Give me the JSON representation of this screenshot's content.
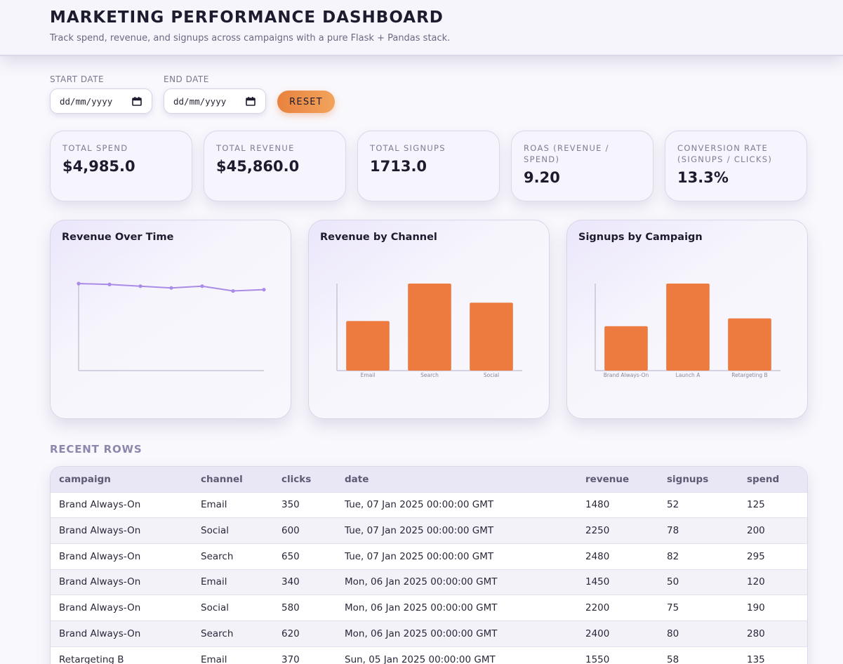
{
  "header": {
    "title": "MARKETING PERFORMANCE DASHBOARD",
    "subtitle": "Track spend, revenue, and signups across campaigns with a pure Flask + Pandas stack."
  },
  "filters": {
    "start_label": "START DATE",
    "end_label": "END DATE",
    "start_placeholder": "dd/mm/yyyy",
    "end_placeholder": "dd/mm/yyyy",
    "reset_label": "RESET",
    "calendar_icon": "calendar-icon"
  },
  "kpis": [
    {
      "label": "TOTAL SPEND",
      "value": "$4,985.0"
    },
    {
      "label": "TOTAL REVENUE",
      "value": "$45,860.0"
    },
    {
      "label": "TOTAL SIGNUPS",
      "value": "1713.0"
    },
    {
      "label": "ROAS (REVENUE / SPEND)",
      "value": "9.20"
    },
    {
      "label": "CONVERSION RATE (SIGNUPS / CLICKS)",
      "value": "13.3%"
    }
  ],
  "colors": {
    "accent_orange": "#ed7a3e",
    "line_purple": "#a98be8",
    "axis": "#c9c3da"
  },
  "chart_data": [
    {
      "type": "line",
      "title": "Revenue Over Time",
      "values": [
        100,
        99,
        97,
        95,
        97,
        91.5,
        93
      ],
      "ylim": [
        0,
        100
      ]
    },
    {
      "type": "bar",
      "title": "Revenue by Channel",
      "categories": [
        "Email",
        "Search",
        "Social"
      ],
      "values": [
        57,
        100,
        78
      ],
      "ylim": [
        0,
        100
      ]
    },
    {
      "type": "bar",
      "title": "Signups by Campaign",
      "categories": [
        "Brand Always-On",
        "Launch A",
        "Retargeting B"
      ],
      "values": [
        51,
        100,
        60
      ],
      "ylim": [
        0,
        100
      ]
    }
  ],
  "table": {
    "section_title": "RECENT ROWS",
    "columns": [
      "campaign",
      "channel",
      "clicks",
      "date",
      "revenue",
      "signups",
      "spend"
    ],
    "rows": [
      [
        "Brand Always-On",
        "Email",
        "350",
        "Tue, 07 Jan 2025 00:00:00 GMT",
        "1480",
        "52",
        "125"
      ],
      [
        "Brand Always-On",
        "Social",
        "600",
        "Tue, 07 Jan 2025 00:00:00 GMT",
        "2250",
        "78",
        "200"
      ],
      [
        "Brand Always-On",
        "Search",
        "650",
        "Tue, 07 Jan 2025 00:00:00 GMT",
        "2480",
        "82",
        "295"
      ],
      [
        "Brand Always-On",
        "Email",
        "340",
        "Mon, 06 Jan 2025 00:00:00 GMT",
        "1450",
        "50",
        "120"
      ],
      [
        "Brand Always-On",
        "Social",
        "580",
        "Mon, 06 Jan 2025 00:00:00 GMT",
        "2200",
        "75",
        "190"
      ],
      [
        "Brand Always-On",
        "Search",
        "620",
        "Mon, 06 Jan 2025 00:00:00 GMT",
        "2400",
        "80",
        "280"
      ],
      [
        "Retargeting B",
        "Email",
        "370",
        "Sun, 05 Jan 2025 00:00:00 GMT",
        "1550",
        "58",
        "135"
      ]
    ]
  }
}
